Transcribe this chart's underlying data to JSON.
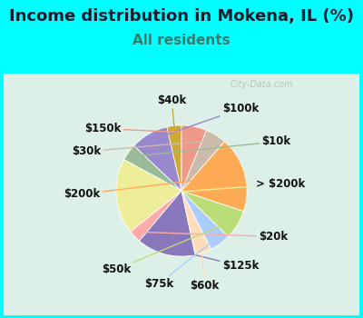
{
  "title": "Income distribution in Mokena, IL (%)",
  "subtitle": "All residents",
  "title_color": "#1a1a2e",
  "subtitle_color": "#3a7a6a",
  "background_color": "#00ffff",
  "watermark": "City-Data.com",
  "labels": [
    "$40k",
    "$100k",
    "$10k",
    "> $200k",
    "$20k",
    "$125k",
    "$60k",
    "$75k",
    "$50k",
    "$200k",
    "$30k",
    "$150k"
  ],
  "sizes": [
    3.5,
    9,
    4,
    18,
    3,
    14,
    4,
    5,
    7,
    18,
    5,
    6
  ],
  "colors": [
    "#ccaa33",
    "#9988cc",
    "#99bb99",
    "#eeee99",
    "#ffaaaa",
    "#8877bb",
    "#ffddbb",
    "#aaccff",
    "#bbdd77",
    "#ffaa55",
    "#ccbbaa",
    "#ee9988"
  ],
  "startangle": 90,
  "label_fontsize": 8.5,
  "title_fontsize": 13,
  "subtitle_fontsize": 11
}
